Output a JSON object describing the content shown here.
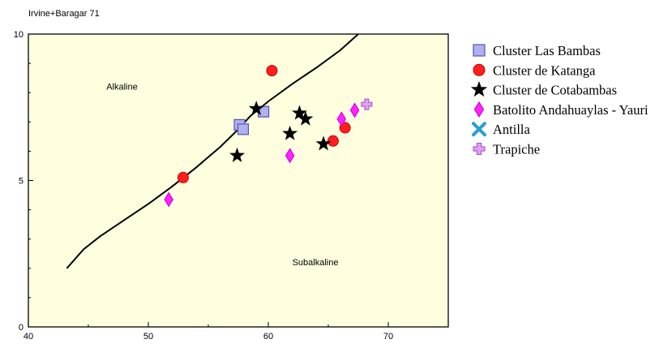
{
  "chart_data": {
    "type": "scatter",
    "title": "Irvine+Baragar 71",
    "xlabel": "",
    "ylabel": "",
    "xlim": [
      40,
      75
    ],
    "ylim": [
      0,
      10
    ],
    "x_ticks": [
      40,
      50,
      60,
      70
    ],
    "y_ticks": [
      0,
      5,
      10
    ],
    "x_tick_labels": [
      "40",
      "50",
      "60",
      "70"
    ],
    "y_tick_labels": [
      "0",
      "5",
      "10"
    ],
    "grid": false,
    "background": "#ffffe0",
    "legend_position": "right",
    "regions": [
      {
        "label": "Alkaline",
        "x": 46.5,
        "y": 8.1
      },
      {
        "label": "Subalkaline",
        "x": 62.0,
        "y": 2.1
      }
    ],
    "boundary_line": {
      "x": [
        43.2,
        44.6,
        46.0,
        48.0,
        50.0,
        52.0,
        54.0,
        56.0,
        57.5,
        58.5,
        60.0,
        62.0,
        64.0,
        66.0,
        67.5
      ],
      "y": [
        2.0,
        2.65,
        3.1,
        3.65,
        4.2,
        4.8,
        5.45,
        6.15,
        6.75,
        7.2,
        7.7,
        8.3,
        8.85,
        9.45,
        10.0
      ]
    },
    "series": [
      {
        "name": "Cluster Las Bambas",
        "marker": "square",
        "color": "#b0b0f0",
        "stroke": "#5555aa",
        "x": [
          57.6,
          57.9,
          59.6
        ],
        "y": [
          6.9,
          6.75,
          7.35
        ]
      },
      {
        "name": "Cluster de Katanga",
        "marker": "circle",
        "color": "#ff1f1f",
        "stroke": "#cc0000",
        "x": [
          52.9,
          60.3,
          65.4,
          66.4
        ],
        "y": [
          5.1,
          8.75,
          6.35,
          6.8
        ]
      },
      {
        "name": "Cluster de Cotabambas",
        "marker": "star",
        "color": "#000000",
        "stroke": "#000000",
        "x": [
          57.4,
          59.0,
          61.8,
          62.6,
          63.1,
          64.6
        ],
        "y": [
          5.85,
          7.45,
          6.6,
          7.3,
          7.1,
          6.25
        ]
      },
      {
        "name": "Batolito Andahuaylas - Yauri",
        "marker": "diamond",
        "color": "#ff22ff",
        "stroke": "#cc00cc",
        "x": [
          51.7,
          61.8,
          66.1,
          67.2
        ],
        "y": [
          4.35,
          5.85,
          7.1,
          7.4
        ]
      },
      {
        "name": "Antilla",
        "marker": "x",
        "color": "#2a9fd0",
        "stroke": "#2a9fd0",
        "x": [],
        "y": []
      },
      {
        "name": "Trapiche",
        "marker": "plus",
        "color": "#e0a0f0",
        "stroke": "#a050c0",
        "x": [
          68.2
        ],
        "y": [
          7.6
        ]
      }
    ]
  }
}
